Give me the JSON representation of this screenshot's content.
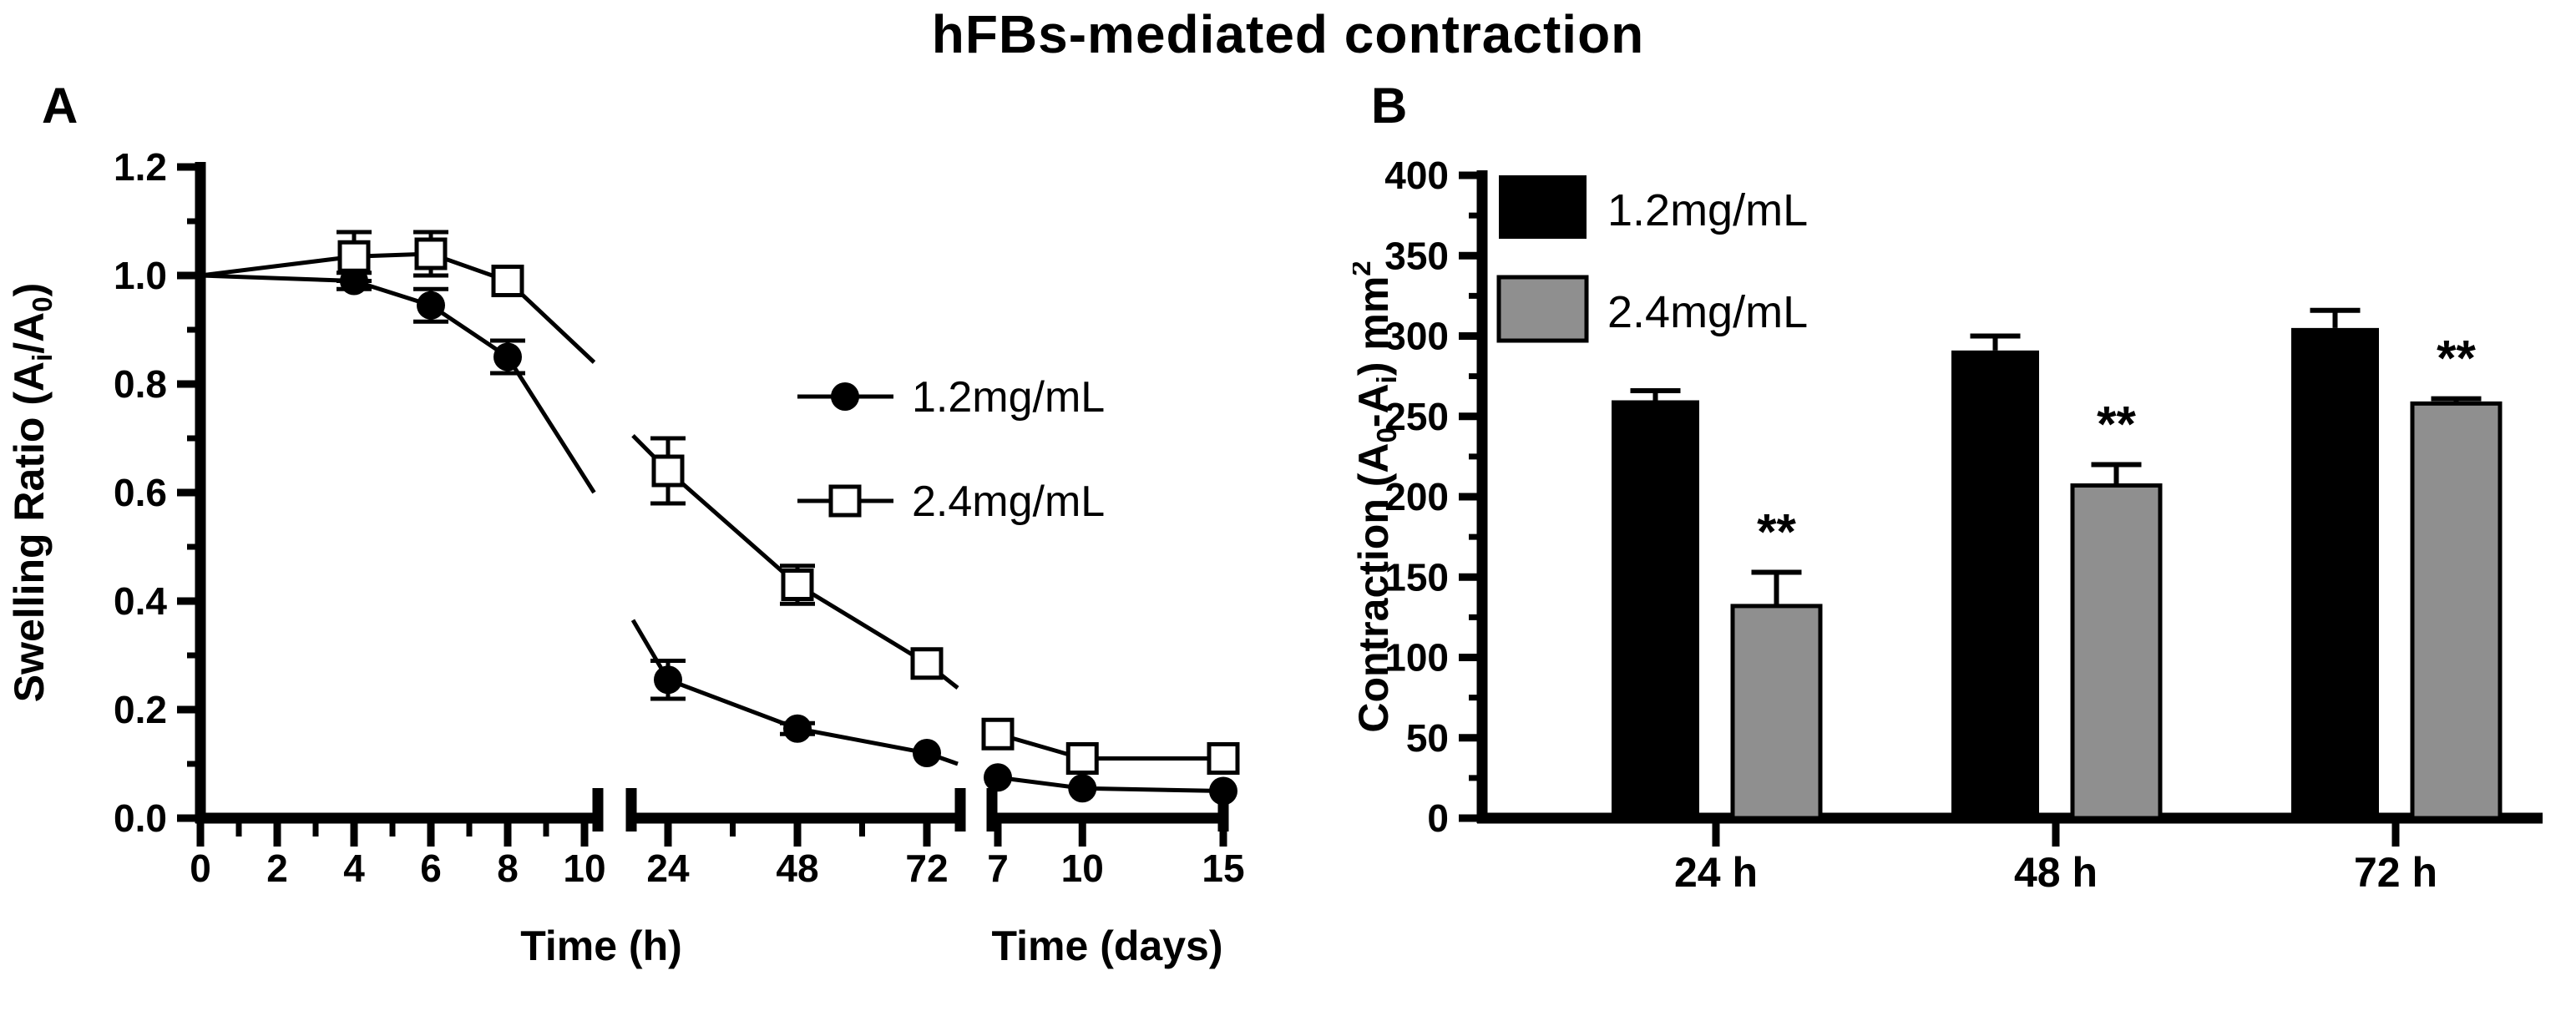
{
  "title": "hFBs-mediated contraction",
  "panel_a_label": "A",
  "panel_b_label": "B",
  "colors": {
    "black": "#000000",
    "gray": "#8f8f8f"
  },
  "chart_data": [
    {
      "type": "line",
      "panel": "A",
      "ylabel_text": "Swelling Ratio (Ai/A0)",
      "ylabel_parts": [
        {
          "t": "Swelling Ratio (A"
        },
        {
          "t": "i",
          "style": "sub"
        },
        {
          "t": "/A"
        },
        {
          "t": "0",
          "style": "sub"
        },
        {
          "t": ")"
        }
      ],
      "ylim": [
        0,
        1.2
      ],
      "ytick_step": 0.2,
      "ytick_minor_step": 0.1,
      "grid": false,
      "legend_position": "right-center",
      "x_segments": [
        {
          "label": "Time (h)",
          "ticks": [
            0,
            2,
            4,
            6,
            8,
            10
          ],
          "minor_ticks": [
            1,
            3,
            5,
            7,
            9
          ],
          "range": [
            0,
            10.35
          ]
        },
        {
          "label": "",
          "ticks": [
            24,
            48,
            72
          ],
          "minor_ticks": [
            36,
            60
          ],
          "range": [
            17,
            78.2
          ]
        },
        {
          "label": "Time (days)",
          "ticks": [
            7,
            10,
            15
          ],
          "minor_ticks": [],
          "range": [
            6.85,
            15
          ]
        }
      ],
      "series": [
        {
          "name": "1.2mg/mL",
          "marker": "filled-circle",
          "color": "#000000",
          "segments": [
            {
              "start_on_axis": true,
              "points": [
                [
                  0,
                  1.0
                ],
                [
                  4,
                  0.99
                ],
                [
                  6,
                  0.945
                ],
                [
                  8,
                  0.85
                ]
              ],
              "errors": [
                0,
                0.015,
                0.03,
                0.03
              ],
              "exit_stub": [
                10.25,
                0.6
              ]
            },
            {
              "points": [
                [
                  24,
                  0.255
                ],
                [
                  48,
                  0.165
                ],
                [
                  72,
                  0.12
                ]
              ],
              "errors": [
                0.035,
                0.01,
                0
              ],
              "enter_stub": [
                17.3,
                0.365
              ],
              "exit_stub": [
                77.8,
                0.1
              ]
            },
            {
              "points": [
                [
                  7,
                  0.075
                ],
                [
                  10,
                  0.055
                ],
                [
                  15,
                  0.05
                ]
              ],
              "errors": [
                0,
                0,
                0
              ]
            }
          ]
        },
        {
          "name": "2.4mg/mL",
          "marker": "open-square",
          "color": "#000000",
          "segments": [
            {
              "start_on_axis": true,
              "points": [
                [
                  0,
                  1.0
                ],
                [
                  4,
                  1.035
                ],
                [
                  6,
                  1.04
                ],
                [
                  8,
                  0.99
                ]
              ],
              "errors": [
                0,
                0.045,
                0.04,
                0
              ],
              "exit_stub": [
                10.25,
                0.84
              ]
            },
            {
              "points": [
                [
                  24,
                  0.64
                ],
                [
                  48,
                  0.43
                ],
                [
                  72,
                  0.285
                ]
              ],
              "errors": [
                0.06,
                0.035,
                0
              ],
              "enter_stub": [
                17.3,
                0.705
              ],
              "exit_stub": [
                77.8,
                0.24
              ]
            },
            {
              "points": [
                [
                  7,
                  0.155
                ],
                [
                  10,
                  0.11
                ],
                [
                  15,
                  0.11
                ]
              ],
              "errors": [
                0,
                0,
                0
              ]
            }
          ]
        }
      ]
    },
    {
      "type": "bar",
      "panel": "B",
      "ylabel_text": "Contraction (A0-Ai) mm2",
      "ylabel_parts": [
        {
          "t": "Contraction (A"
        },
        {
          "t": "0",
          "style": "sub"
        },
        {
          "t": "-A"
        },
        {
          "t": "i",
          "style": "sub"
        },
        {
          "t": ") mm"
        },
        {
          "t": "2",
          "style": "sup"
        }
      ],
      "ylim": [
        0,
        400
      ],
      "ytick_step": 50,
      "ytick_minor_step": 25,
      "grid": false,
      "legend_position": "top-left",
      "categories": [
        "24 h",
        "48 h",
        "72 h"
      ],
      "series": [
        {
          "name": "1.2mg/mL",
          "color": "#000000",
          "values": [
            260,
            291,
            305
          ],
          "errors": [
            6,
            9,
            11
          ],
          "significance": [
            "",
            "",
            ""
          ]
        },
        {
          "name": "2.4mg/mL",
          "color": "#8f8f8f",
          "values": [
            132,
            207,
            258
          ],
          "errors": [
            21,
            13,
            3
          ],
          "significance": [
            "**",
            "**",
            "**"
          ]
        }
      ]
    }
  ]
}
